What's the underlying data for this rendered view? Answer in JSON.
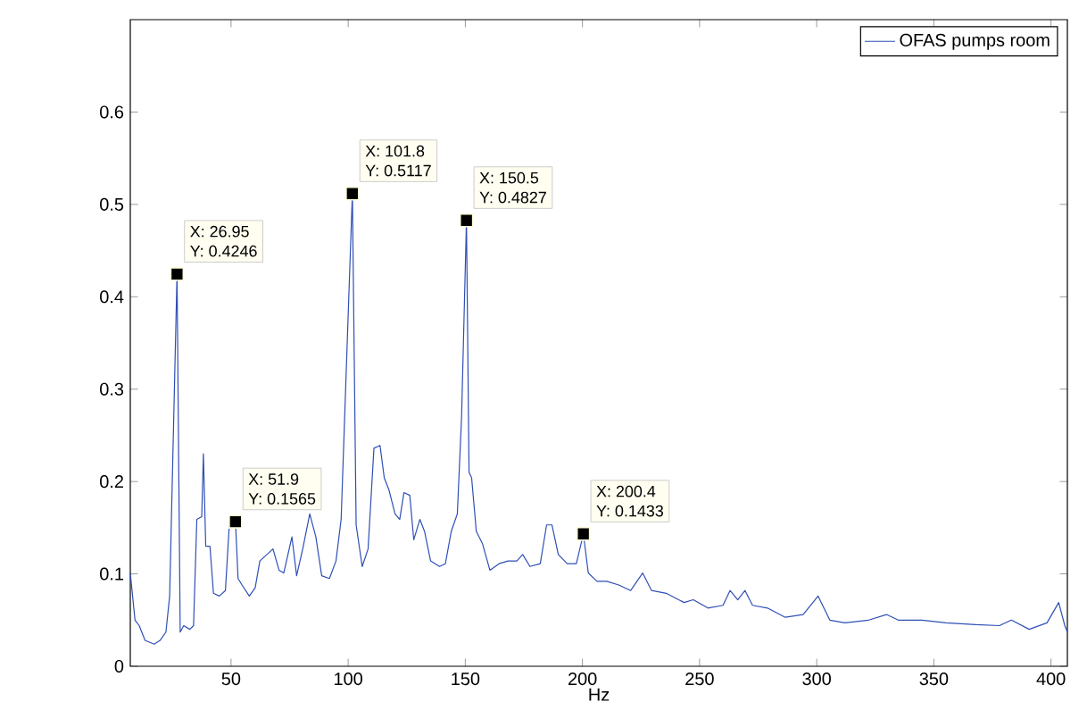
{
  "chart_data": {
    "type": "line",
    "xlabel": "Hz",
    "xlim": [
      7,
      407
    ],
    "ylim": [
      0,
      0.7
    ],
    "xticks": [
      50,
      100,
      150,
      200,
      250,
      300,
      350,
      400
    ],
    "yticks": [
      0,
      0.1,
      0.2,
      0.3,
      0.4,
      0.5,
      0.6
    ],
    "grid": false,
    "legend": "top right",
    "line_style": "solid",
    "series": [
      {
        "name": "OFAS pumps room",
        "color": "#2e4fb5",
        "x": [
          7,
          9,
          10.8,
          13.3,
          17.2,
          19.7,
          22.2,
          23.8,
          26.95,
          28.3,
          29.8,
          32.4,
          34,
          35.4,
          37.5,
          38.2,
          39.2,
          41,
          42.5,
          45,
          47.6,
          49.4,
          51.9,
          53,
          54.7,
          57.8,
          60.3,
          62.3,
          67.9,
          70.5,
          72.5,
          76,
          78,
          80.6,
          83.6,
          86.2,
          88.7,
          92,
          94.8,
          97,
          100,
          101.8,
          103.4,
          106,
          108.5,
          111,
          113.6,
          115.4,
          117.4,
          120,
          122,
          123.8,
          126.3,
          128,
          130.6,
          132.6,
          135.2,
          139,
          141.5,
          144,
          146.6,
          148.4,
          150.5,
          151.6,
          152.7,
          154.7,
          157.3,
          160.5,
          164.4,
          168.2,
          172,
          174.5,
          177.6,
          182,
          184.7,
          187,
          189.7,
          193.5,
          197.4,
          200.4,
          202.5,
          206.2,
          210.4,
          215.5,
          220.6,
          225.7,
          229.5,
          235.8,
          243.4,
          247.3,
          253.6,
          260,
          263,
          266.3,
          269.4,
          272.6,
          279,
          286.6,
          294.2,
          300.6,
          305.6,
          312,
          322.2,
          329.8,
          334.8,
          345,
          355.2,
          367.9,
          378,
          383.1,
          390.7,
          398.3,
          403.3,
          405.9,
          407
        ],
        "values": [
          0.101,
          0.05,
          0.044,
          0.028,
          0.024,
          0.028,
          0.037,
          0.076,
          0.4246,
          0.037,
          0.044,
          0.04,
          0.044,
          0.159,
          0.162,
          0.23,
          0.13,
          0.13,
          0.079,
          0.076,
          0.082,
          0.159,
          0.1565,
          0.095,
          0.088,
          0.076,
          0.085,
          0.114,
          0.127,
          0.104,
          0.101,
          0.14,
          0.098,
          0.127,
          0.165,
          0.14,
          0.098,
          0.095,
          0.114,
          0.159,
          0.38,
          0.5117,
          0.153,
          0.108,
          0.127,
          0.236,
          0.239,
          0.204,
          0.191,
          0.165,
          0.159,
          0.188,
          0.185,
          0.137,
          0.159,
          0.146,
          0.114,
          0.108,
          0.111,
          0.146,
          0.165,
          0.269,
          0.4827,
          0.21,
          0.204,
          0.146,
          0.133,
          0.104,
          0.111,
          0.114,
          0.114,
          0.121,
          0.108,
          0.111,
          0.153,
          0.153,
          0.121,
          0.111,
          0.111,
          0.1433,
          0.101,
          0.092,
          0.092,
          0.088,
          0.082,
          0.101,
          0.082,
          0.079,
          0.069,
          0.072,
          0.063,
          0.066,
          0.082,
          0.072,
          0.082,
          0.066,
          0.063,
          0.053,
          0.056,
          0.076,
          0.05,
          0.047,
          0.05,
          0.056,
          0.05,
          0.05,
          0.047,
          0.045,
          0.044,
          0.05,
          0.04,
          0.047,
          0.069,
          0.044,
          0.037
        ]
      }
    ],
    "annotations": [
      {
        "text": "X: 26.95",
        "x": 26.95,
        "y": 0.4246
      },
      {
        "text": "Y: 0.4246",
        "x": 26.95,
        "y": 0.4246
      },
      {
        "text": "X: 51.9",
        "x": 51.9,
        "y": 0.1565
      },
      {
        "text": "Y: 0.1565",
        "x": 51.9,
        "y": 0.1565
      },
      {
        "text": "X: 101.8",
        "x": 101.8,
        "y": 0.5117
      },
      {
        "text": "Y: 0.5117",
        "x": 101.8,
        "y": 0.5117
      },
      {
        "text": "X: 150.5",
        "x": 150.5,
        "y": 0.4827
      },
      {
        "text": "Y: 0.4827",
        "x": 150.5,
        "y": 0.4827
      },
      {
        "text": "X: 200.4",
        "x": 200.4,
        "y": 0.1433
      },
      {
        "text": "Y: 0.1433",
        "x": 200.4,
        "y": 0.1433
      }
    ]
  }
}
